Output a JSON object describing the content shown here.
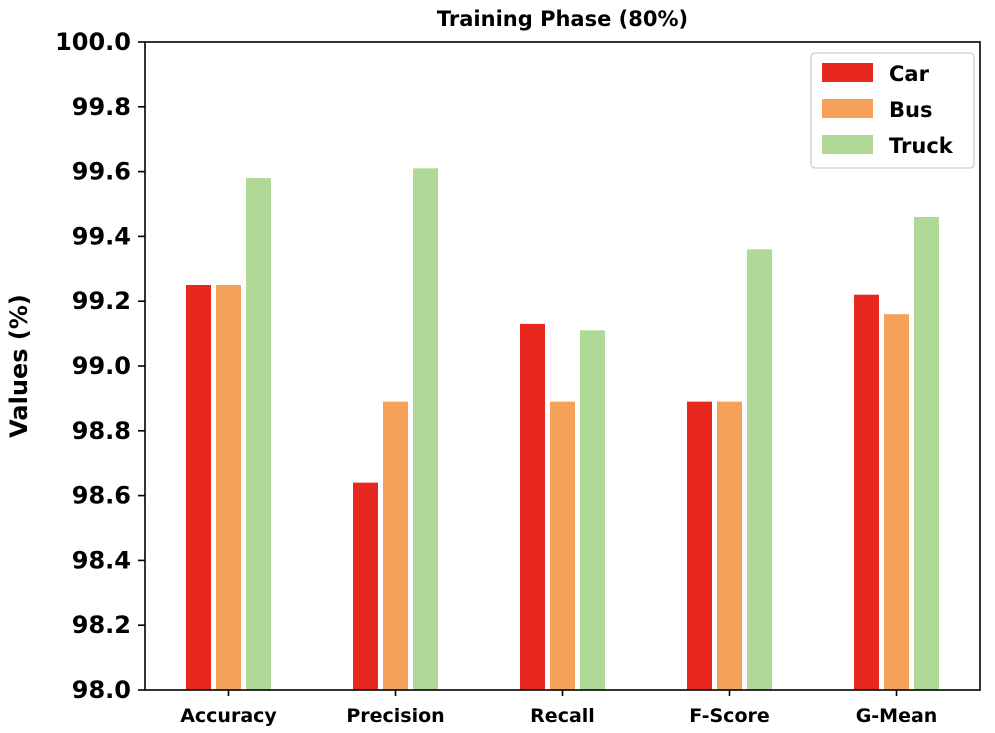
{
  "chart_data": {
    "type": "bar",
    "title": "Training Phase (80%)",
    "xlabel": "",
    "ylabel": "Values (%)",
    "ylim": [
      98.0,
      100.0
    ],
    "yticks": [
      "98.0",
      "98.2",
      "98.4",
      "98.6",
      "98.8",
      "99.0",
      "99.2",
      "99.4",
      "99.6",
      "99.8",
      "100.0"
    ],
    "ytick_values": [
      98.0,
      98.2,
      98.4,
      98.6,
      98.8,
      99.0,
      99.2,
      99.4,
      99.6,
      99.8,
      100.0
    ],
    "categories": [
      "Accuracy",
      "Precision",
      "Recall",
      "F-Score",
      "G-Mean"
    ],
    "series": [
      {
        "name": "Car",
        "color": "#e8281e",
        "values": [
          99.25,
          98.64,
          99.13,
          98.89,
          99.22
        ]
      },
      {
        "name": "Bus",
        "color": "#f5a159",
        "values": [
          99.25,
          98.89,
          98.89,
          98.89,
          99.16
        ]
      },
      {
        "name": "Truck",
        "color": "#b0d896",
        "values": [
          99.58,
          99.61,
          99.11,
          99.36,
          99.46
        ]
      }
    ],
    "legend_position": "top-right",
    "grid": false
  }
}
